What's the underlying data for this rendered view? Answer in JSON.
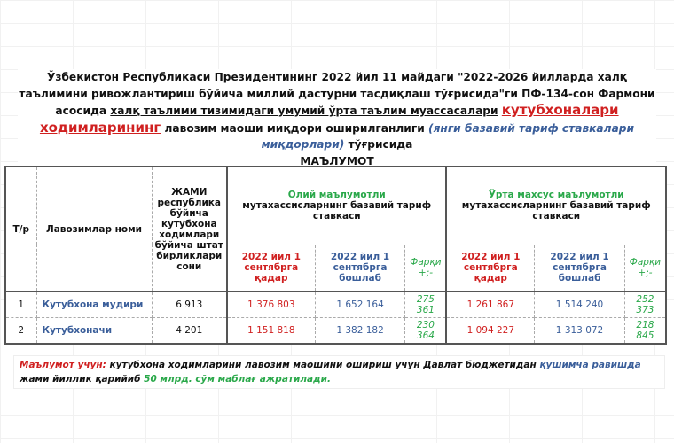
{
  "title": {
    "part1": "Ўзбекистон Республикаси Президентининг 2022 йил 11 майдаги \"2022-2026 йилларда халқ таълимини ривожлантириш бўйича миллий дастурни тасдиқлаш тўғрисида\"ги ПФ-134-сон Фармони асосида ",
    "underlined": "халқ таълими тизимидаги умумий ўрта таълим муассасалари",
    "highlight": "кутубхоналари ходимларининг",
    "part2": " лавозим маоши миқдори оширилганлиги ",
    "italic": "(янги базавий тариф ставкалари миқдорлари)",
    "part3": " тўғрисида",
    "heading": "МАЪЛУМОТ"
  },
  "table": {
    "col_num": "Т/р",
    "col_name": "Лавозимлар номи",
    "col_total": "ЖАМИ республика бўйича кутубхона ходимлари бўйича штат бирликлари сони",
    "groups": [
      {
        "title": "Олий маълумотли",
        "subtitle": "мутахассисларнинг базавий тариф ставкаси"
      },
      {
        "title": "Ўрта махсус маълумотли",
        "subtitle": "мутахассисларнинг базавий тариф ставкаси"
      }
    ],
    "sub_before": "2022 йил 1 сентябрга қадар",
    "sub_after": "2022 йил 1 сентябрга бошлаб",
    "sub_diff": "Фарқи +;-",
    "rows": [
      {
        "n": "1",
        "name": "Кутубхона мудири",
        "total": "6 913",
        "v": [
          "1 376 803",
          "1 652 164",
          "275 361",
          "1 261 867",
          "1 514 240",
          "252 373"
        ]
      },
      {
        "n": "2",
        "name": "Кутубхоначи",
        "total": "4 201",
        "v": [
          "1 151 818",
          "1 382 182",
          "230 364",
          "1 094 227",
          "1 313 072",
          "218 845"
        ]
      }
    ]
  },
  "note": {
    "label": "Маълумот учун",
    "colon": ": ",
    "text1": "кутубхона ходимларини лавозим маошини ошириш учун Давлат бюджетидан ",
    "blue": "қўшимча равишда",
    "text2": " жами йиллик  қарийиб ",
    "green": "50 млрд. сўм маблағ ажратилади."
  },
  "colors": {
    "red": "#d02020",
    "blue": "#3a5e9a",
    "green": "#2aa84a"
  }
}
